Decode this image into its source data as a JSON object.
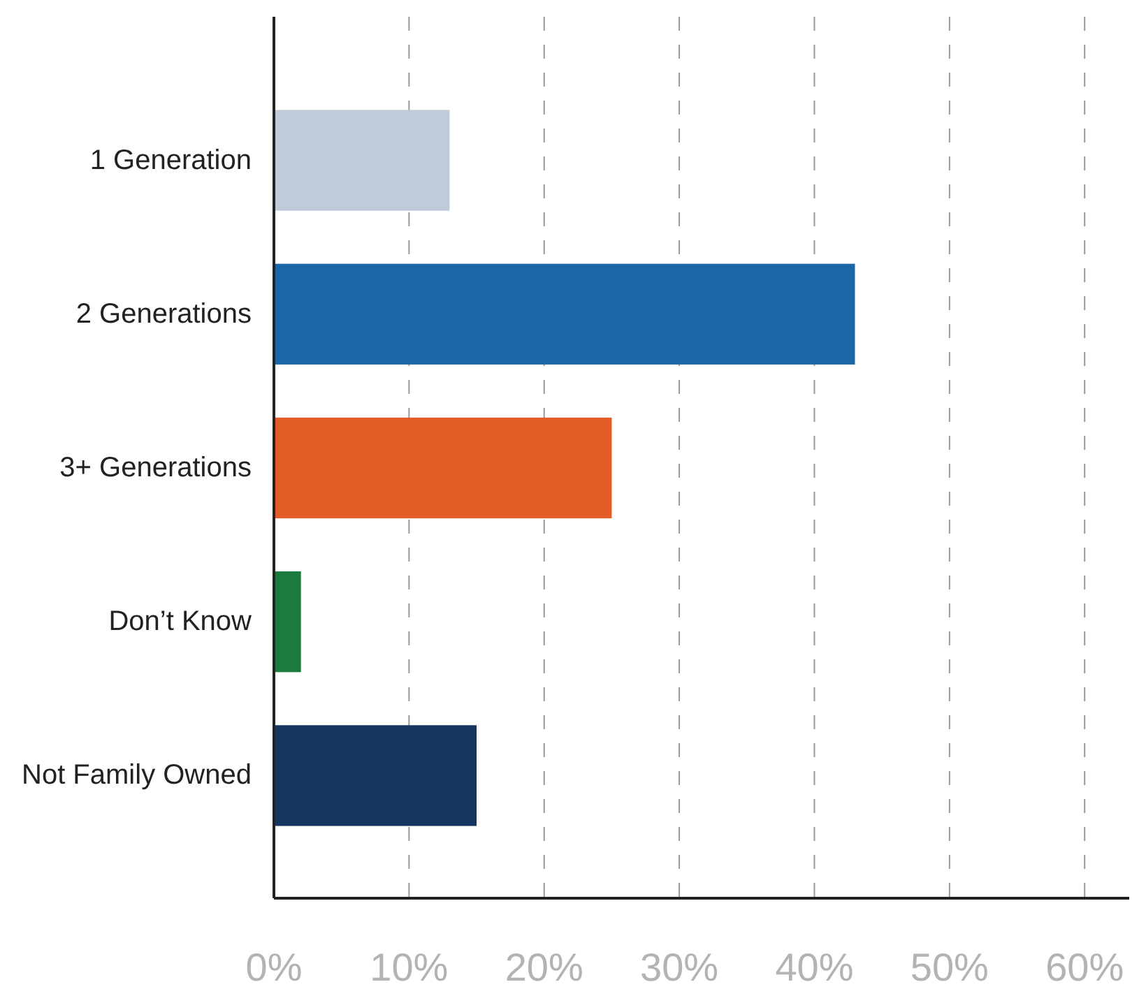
{
  "chart_data": {
    "type": "bar",
    "orientation": "horizontal",
    "categories": [
      "1 Generation",
      "2 Generations",
      "3+ Generations",
      "Don’t Know",
      "Not Family Owned"
    ],
    "values": [
      13,
      43,
      25,
      2,
      15
    ],
    "colors": [
      "#bfcbd8",
      "#1b66a6",
      "#e35b27",
      "#1b7a3e",
      "#17365f"
    ],
    "xlim": [
      0,
      63.3
    ],
    "xticks": [
      {
        "value": 0,
        "label": "0%"
      },
      {
        "value": 10,
        "label": "10%"
      },
      {
        "value": 20,
        "label": "20%"
      },
      {
        "value": 30,
        "label": "30%"
      },
      {
        "value": 40,
        "label": "40%"
      },
      {
        "value": 50,
        "label": "50%"
      },
      {
        "value": 60,
        "label": "60%"
      }
    ],
    "grid": "x"
  }
}
